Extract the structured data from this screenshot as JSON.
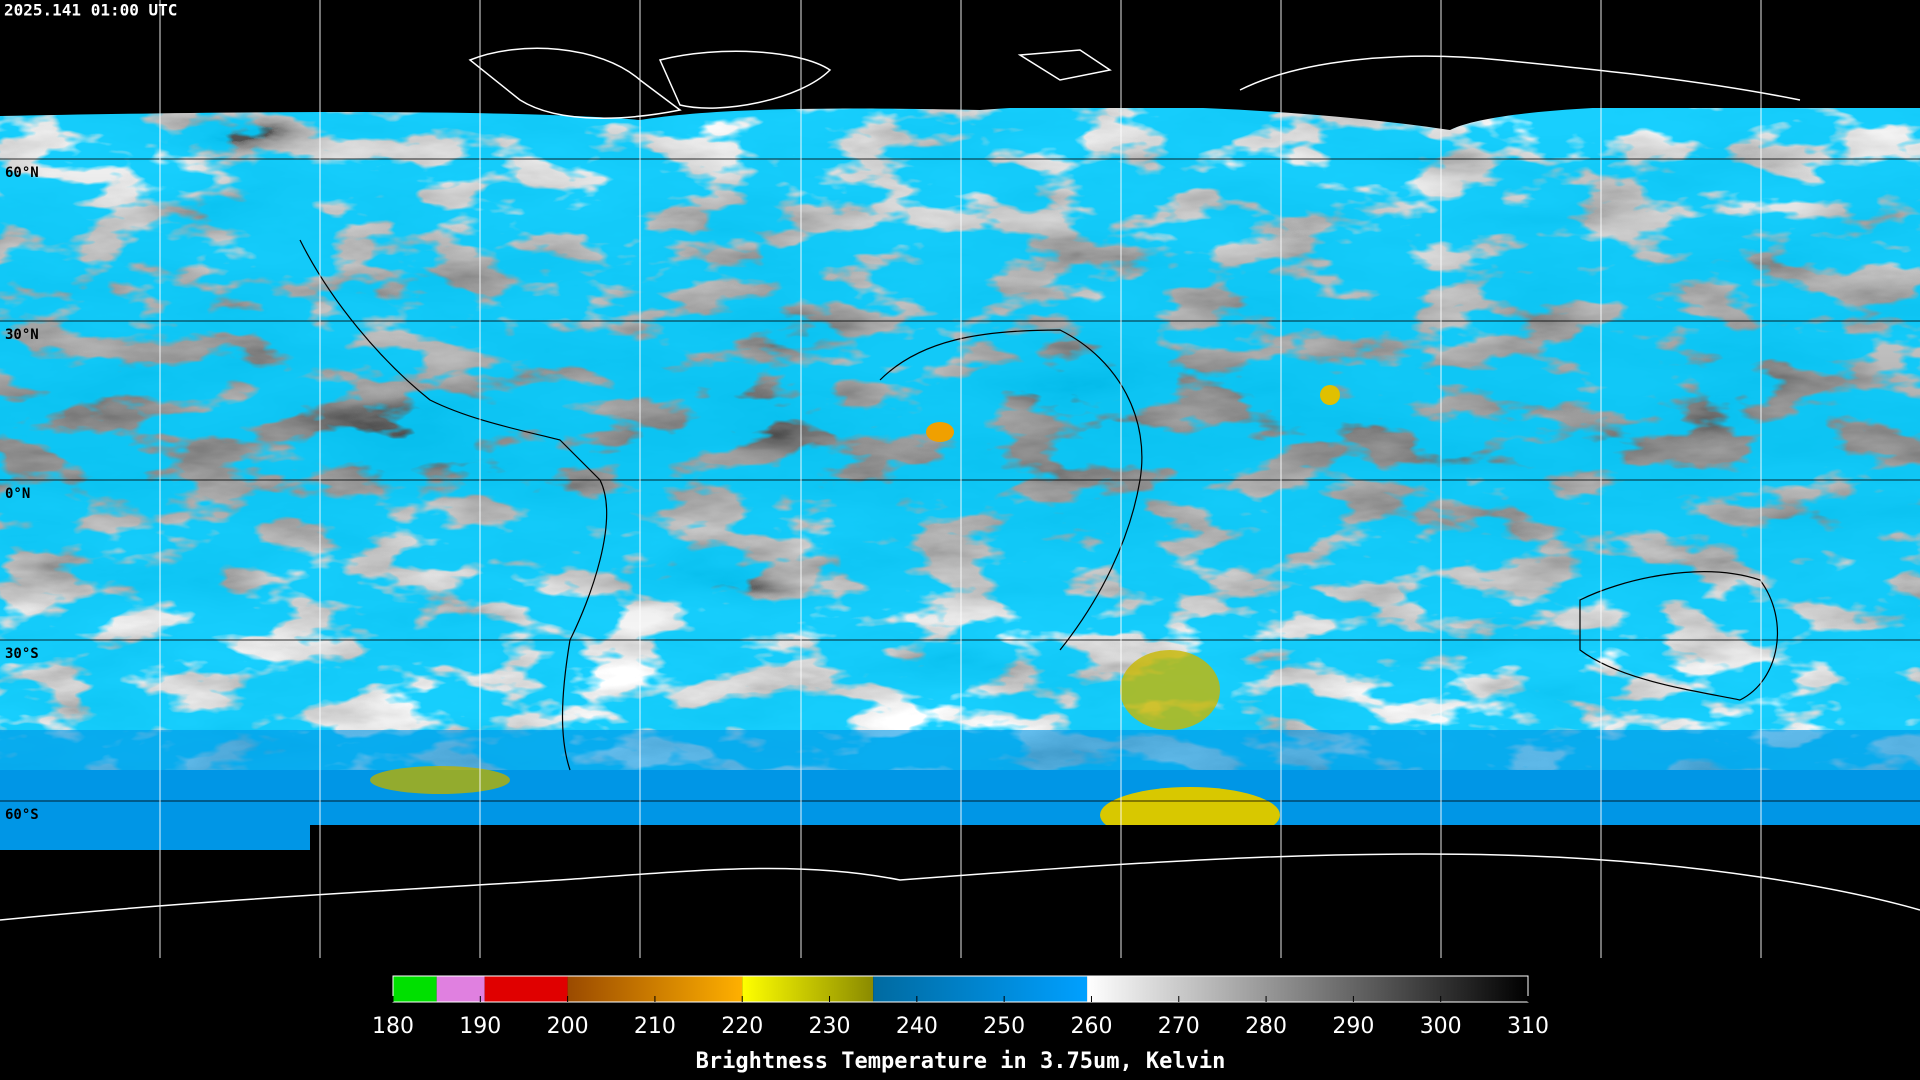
{
  "header": {
    "timestamp": "2025.141 01:00 UTC"
  },
  "map": {
    "lat_labels": [
      "60°N",
      "30°N",
      "0°N",
      "30°S",
      "60°S"
    ]
  },
  "colorbar": {
    "range": [
      180,
      310
    ],
    "ticks": [
      180,
      190,
      200,
      210,
      220,
      230,
      240,
      250,
      260,
      270,
      280,
      290,
      300,
      310
    ],
    "segments": [
      {
        "from": 180,
        "to": 185,
        "colors": [
          "#00e000",
          "#00e000"
        ]
      },
      {
        "from": 185,
        "to": 190.5,
        "colors": [
          "#e080e0",
          "#e080e0"
        ]
      },
      {
        "from": 190.5,
        "to": 200,
        "colors": [
          "#e00000",
          "#e00000"
        ]
      },
      {
        "from": 200,
        "to": 220,
        "colors": [
          "#9a4a00",
          "#ffb000"
        ]
      },
      {
        "from": 220,
        "to": 235,
        "colors": [
          "#ffff00",
          "#8a8a00"
        ]
      },
      {
        "from": 235,
        "to": 259.5,
        "colors": [
          "#006aa0",
          "#00a0ff"
        ]
      },
      {
        "from": 259.5,
        "to": 310,
        "colors": [
          "#ffffff",
          "#000000"
        ]
      }
    ],
    "label": "Brightness Temperature in 3.75um, Kelvin"
  }
}
